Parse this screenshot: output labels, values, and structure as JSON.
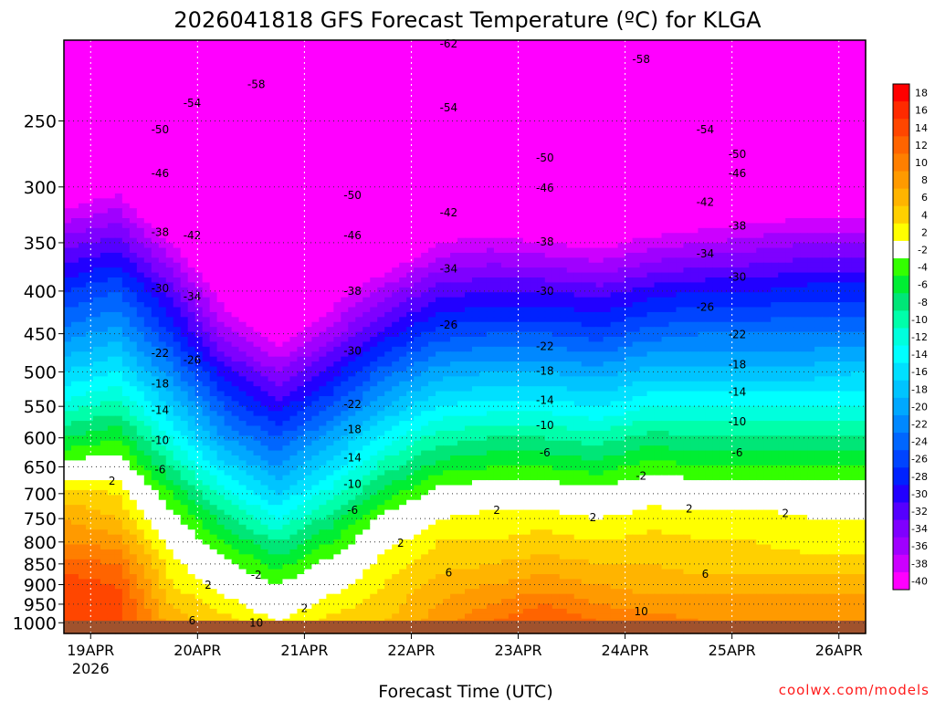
{
  "chart_data": {
    "type": "heatmap",
    "title": "2026041818 GFS Forecast Temperature (ºC) for KLGA",
    "xlabel": "Forecast Time (UTC)",
    "ylabel": "",
    "credit": "coolwx.com/models",
    "x_ticks": [
      "19APR",
      "20APR",
      "21APR",
      "22APR",
      "23APR",
      "24APR",
      "25APR",
      "26APR"
    ],
    "x_tick_year": "2026",
    "x_range_days": [
      0,
      7.5
    ],
    "y_ticks": [
      250,
      300,
      350,
      400,
      450,
      500,
      550,
      600,
      650,
      700,
      750,
      800,
      850,
      900,
      950,
      1000
    ],
    "y_range_hpa": [
      200,
      1030
    ],
    "y_scale": "log",
    "colorbar": {
      "ticks": [
        "18",
        "16",
        "14",
        "12",
        "10",
        "8",
        "6",
        "4",
        "2",
        "-2",
        "-4",
        "-6",
        "-8",
        "-10",
        "-12",
        "-14",
        "-16",
        "-18",
        "-20",
        "-22",
        "-24",
        "-26",
        "-28",
        "-30",
        "-32",
        "-34",
        "-36",
        "-38",
        "-40"
      ],
      "colors": [
        "#ff0000",
        "#ff2a00",
        "#ff4600",
        "#ff6400",
        "#ff7f00",
        "#ff9a00",
        "#ffb400",
        "#ffd000",
        "#ffff00",
        "#ffffff",
        "#33ff00",
        "#00ee33",
        "#00e677",
        "#00ffaa",
        "#00ffdd",
        "#00ffff",
        "#00e0ff",
        "#00c4ff",
        "#00a8ff",
        "#0088ff",
        "#0066ff",
        "#0044ff",
        "#0022ff",
        "#2200ff",
        "#5500ff",
        "#7f00ff",
        "#a000ff",
        "#cc00ff",
        "#ff00ff"
      ]
    },
    "series": [
      {
        "level": 250,
        "values": [
          -52,
          -49,
          -51,
          -55,
          -55,
          -55,
          -54,
          -53,
          -53,
          -55,
          -55,
          -53,
          -55,
          -56,
          -55,
          -54
        ]
      },
      {
        "level": 300,
        "values": [
          -41,
          -39,
          -46,
          -52,
          -54,
          -52,
          -49,
          -45,
          -45,
          -46,
          -47,
          -45,
          -44,
          -43,
          -43,
          -43
        ]
      },
      {
        "level": 350,
        "values": [
          -33,
          -31,
          -38,
          -46,
          -50,
          -47,
          -43,
          -38,
          -37,
          -38,
          -39,
          -37,
          -36,
          -35,
          -34,
          -34
        ]
      },
      {
        "level": 400,
        "values": [
          -26,
          -24,
          -31,
          -40,
          -45,
          -40,
          -35,
          -31,
          -30,
          -30,
          -31,
          -29,
          -28,
          -28,
          -27,
          -27
        ]
      },
      {
        "level": 450,
        "values": [
          -21,
          -19,
          -26,
          -35,
          -40,
          -35,
          -29,
          -25,
          -24,
          -24,
          -25,
          -23,
          -22,
          -22,
          -22,
          -22
        ]
      },
      {
        "level": 500,
        "values": [
          -16,
          -14,
          -21,
          -29,
          -34,
          -29,
          -23,
          -19,
          -18,
          -18,
          -19,
          -17,
          -17,
          -17,
          -17,
          -16
        ]
      },
      {
        "level": 550,
        "values": [
          -11,
          -9,
          -16,
          -24,
          -29,
          -24,
          -18,
          -14,
          -13,
          -13,
          -14,
          -12,
          -12,
          -12,
          -12,
          -12
        ]
      },
      {
        "level": 600,
        "values": [
          -6,
          -4,
          -12,
          -20,
          -24,
          -19,
          -13,
          -9,
          -8,
          -8,
          -9,
          -7,
          -8,
          -8,
          -8,
          -8
        ]
      },
      {
        "level": 650,
        "values": [
          -1,
          0,
          -8,
          -15,
          -20,
          -15,
          -9,
          -5,
          -4,
          -4,
          -5,
          -3,
          -4,
          -4,
          -4,
          -4
        ]
      },
      {
        "level": 700,
        "values": [
          5,
          4,
          -4,
          -11,
          -16,
          -11,
          -5,
          -1,
          0,
          0,
          -1,
          1,
          0,
          0,
          0,
          0
        ]
      },
      {
        "level": 750,
        "values": [
          8,
          6,
          -1,
          -7,
          -12,
          -7,
          -1,
          2,
          3,
          3,
          2,
          3,
          3,
          3,
          2,
          2
        ]
      },
      {
        "level": 800,
        "values": [
          10,
          9,
          1,
          -4,
          -8,
          -4,
          1,
          4,
          4,
          5,
          4,
          5,
          4,
          4,
          3,
          3
        ]
      },
      {
        "level": 850,
        "values": [
          13,
          12,
          3,
          -1,
          -5,
          -1,
          3,
          5,
          6,
          7,
          6,
          6,
          5,
          5,
          5,
          5
        ]
      },
      {
        "level": 900,
        "values": [
          15,
          14,
          4,
          1,
          -2,
          1,
          4,
          7,
          8,
          9,
          8,
          7,
          7,
          7,
          7,
          7
        ]
      },
      {
        "level": 950,
        "values": [
          15,
          15,
          6,
          3,
          0,
          3,
          5,
          8,
          10,
          12,
          10,
          9,
          9,
          9,
          9,
          9
        ]
      },
      {
        "level": 1000,
        "values": [
          14,
          15,
          7,
          5,
          2,
          5,
          6,
          9,
          12,
          14,
          12,
          11,
          10,
          10,
          10,
          10
        ]
      }
    ],
    "contour_labels": [
      "-62",
      "-58",
      "-58",
      "-54",
      "-54",
      "-54",
      "-50",
      "-50",
      "-50",
      "-50",
      "-46",
      "-46",
      "-46",
      "-46",
      "-42",
      "-42",
      "-42",
      "-38",
      "-38",
      "-38",
      "-38",
      "-34",
      "-34",
      "-34",
      "-30",
      "-30",
      "-30",
      "-30",
      "-26",
      "-26",
      "-26",
      "-22",
      "-22",
      "-22",
      "-22",
      "-18",
      "-18",
      "-18",
      "-18",
      "-14",
      "-14",
      "-14",
      "-14",
      "-10",
      "-10",
      "-10",
      "-10",
      "-6",
      "-6",
      "-6",
      "-6",
      "-2",
      "-2",
      "2",
      "2",
      "2",
      "2",
      "2",
      "2",
      "2",
      "2",
      "6",
      "6",
      "6",
      "10",
      "10"
    ]
  }
}
